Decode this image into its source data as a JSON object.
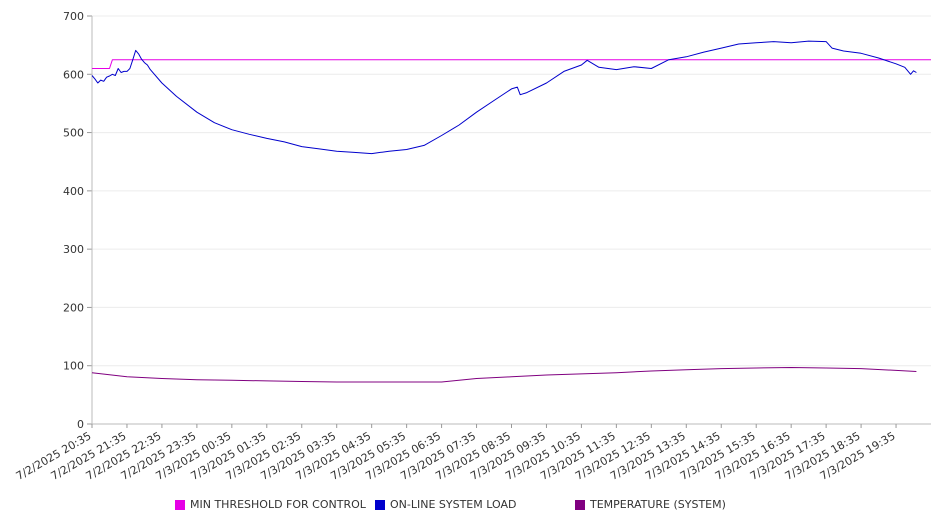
{
  "chart_data": {
    "type": "line",
    "title": "",
    "xlabel": "",
    "ylabel": "",
    "ylim": [
      0,
      700
    ],
    "yticks": [
      0,
      100,
      200,
      300,
      400,
      500,
      600,
      700
    ],
    "grid": true,
    "legend_position": "bottom",
    "x_tick_labels": [
      "7/2/2025 20:35",
      "7/2/2025 21:35",
      "7/2/2025 22:35",
      "7/2/2025 23:35",
      "7/3/2025 00:35",
      "7/3/2025 01:35",
      "7/3/2025 02:35",
      "7/3/2025 03:35",
      "7/3/2025 04:35",
      "7/3/2025 05:35",
      "7/3/2025 06:35",
      "7/3/2025 07:35",
      "7/3/2025 08:35",
      "7/3/2025 09:35",
      "7/3/2025 10:35",
      "7/3/2025 11:35",
      "7/3/2025 12:35",
      "7/3/2025 13:35",
      "7/3/2025 14:35",
      "7/3/2025 15:35",
      "7/3/2025 16:35",
      "7/3/2025 17:35",
      "7/3/2025 18:35",
      "7/3/2025 19:35"
    ],
    "x_time_range": [
      "7/2/2025 20:35",
      "7/3/2025 20:35"
    ],
    "series": [
      {
        "name": "MIN THRESHOLD FOR CONTROL",
        "color": "#e600e6",
        "points": [
          [
            "7/2/2025 20:35",
            610
          ],
          [
            "7/2/2025 21:05",
            610
          ],
          [
            "7/2/2025 21:10",
            625
          ],
          [
            "7/3/2025 20:35",
            625
          ]
        ]
      },
      {
        "name": "ON-LINE SYSTEM LOAD",
        "color": "#0000cc",
        "points": [
          [
            "7/2/2025 20:35",
            598
          ],
          [
            "7/2/2025 20:40",
            592
          ],
          [
            "7/2/2025 20:45",
            585
          ],
          [
            "7/2/2025 20:50",
            590
          ],
          [
            "7/2/2025 20:55",
            588
          ],
          [
            "7/2/2025 21:00",
            595
          ],
          [
            "7/2/2025 21:05",
            597
          ],
          [
            "7/2/2025 21:10",
            600
          ],
          [
            "7/2/2025 21:15",
            598
          ],
          [
            "7/2/2025 21:20",
            610
          ],
          [
            "7/2/2025 21:25",
            603
          ],
          [
            "7/2/2025 21:30",
            605
          ],
          [
            "7/2/2025 21:35",
            605
          ],
          [
            "7/2/2025 21:40",
            610
          ],
          [
            "7/2/2025 21:45",
            625
          ],
          [
            "7/2/2025 21:50",
            641
          ],
          [
            "7/2/2025 21:55",
            635
          ],
          [
            "7/2/2025 22:00",
            626
          ],
          [
            "7/2/2025 22:05",
            620
          ],
          [
            "7/2/2025 22:10",
            616
          ],
          [
            "7/2/2025 22:15",
            608
          ],
          [
            "7/2/2025 22:35",
            585
          ],
          [
            "7/2/2025 23:00",
            562
          ],
          [
            "7/2/2025 23:35",
            535
          ],
          [
            "7/3/2025 00:05",
            517
          ],
          [
            "7/3/2025 00:35",
            505
          ],
          [
            "7/3/2025 01:05",
            497
          ],
          [
            "7/3/2025 01:35",
            490
          ],
          [
            "7/3/2025 02:05",
            484
          ],
          [
            "7/3/2025 02:35",
            476
          ],
          [
            "7/3/2025 03:05",
            472
          ],
          [
            "7/3/2025 03:35",
            468
          ],
          [
            "7/3/2025 04:05",
            466
          ],
          [
            "7/3/2025 04:35",
            464
          ],
          [
            "7/3/2025 05:05",
            468
          ],
          [
            "7/3/2025 05:35",
            471
          ],
          [
            "7/3/2025 06:05",
            478
          ],
          [
            "7/3/2025 06:35",
            495
          ],
          [
            "7/3/2025 07:05",
            513
          ],
          [
            "7/3/2025 07:35",
            535
          ],
          [
            "7/3/2025 08:05",
            555
          ],
          [
            "7/3/2025 08:35",
            575
          ],
          [
            "7/3/2025 08:45",
            578
          ],
          [
            "7/3/2025 08:50",
            565
          ],
          [
            "7/3/2025 09:00",
            568
          ],
          [
            "7/3/2025 09:35",
            585
          ],
          [
            "7/3/2025 10:05",
            605
          ],
          [
            "7/3/2025 10:35",
            616
          ],
          [
            "7/3/2025 10:45",
            624
          ],
          [
            "7/3/2025 11:05",
            612
          ],
          [
            "7/3/2025 11:35",
            608
          ],
          [
            "7/3/2025 12:05",
            613
          ],
          [
            "7/3/2025 12:35",
            610
          ],
          [
            "7/3/2025 13:05",
            625
          ],
          [
            "7/3/2025 13:35",
            630
          ],
          [
            "7/3/2025 14:05",
            638
          ],
          [
            "7/3/2025 14:35",
            645
          ],
          [
            "7/3/2025 15:05",
            652
          ],
          [
            "7/3/2025 15:35",
            654
          ],
          [
            "7/3/2025 16:05",
            656
          ],
          [
            "7/3/2025 16:35",
            654
          ],
          [
            "7/3/2025 17:05",
            657
          ],
          [
            "7/3/2025 17:35",
            656
          ],
          [
            "7/3/2025 17:45",
            645
          ],
          [
            "7/3/2025 18:05",
            640
          ],
          [
            "7/3/2025 18:35",
            636
          ],
          [
            "7/3/2025 19:05",
            628
          ],
          [
            "7/3/2025 19:35",
            618
          ],
          [
            "7/3/2025 19:50",
            612
          ],
          [
            "7/3/2025 20:00",
            600
          ],
          [
            "7/3/2025 20:05",
            606
          ],
          [
            "7/3/2025 20:10",
            603
          ]
        ]
      },
      {
        "name": "TEMPERATURE (SYSTEM)",
        "color": "#800080",
        "points": [
          [
            "7/2/2025 20:35",
            88
          ],
          [
            "7/2/2025 21:35",
            81
          ],
          [
            "7/2/2025 22:35",
            78
          ],
          [
            "7/2/2025 23:35",
            76
          ],
          [
            "7/3/2025 00:35",
            75
          ],
          [
            "7/3/2025 01:35",
            74
          ],
          [
            "7/3/2025 02:35",
            73
          ],
          [
            "7/3/2025 03:35",
            72
          ],
          [
            "7/3/2025 04:35",
            72
          ],
          [
            "7/3/2025 05:35",
            72
          ],
          [
            "7/3/2025 06:35",
            72
          ],
          [
            "7/3/2025 07:35",
            78
          ],
          [
            "7/3/2025 08:35",
            81
          ],
          [
            "7/3/2025 09:35",
            84
          ],
          [
            "7/3/2025 10:35",
            86
          ],
          [
            "7/3/2025 11:35",
            88
          ],
          [
            "7/3/2025 12:35",
            91
          ],
          [
            "7/3/2025 13:35",
            93
          ],
          [
            "7/3/2025 14:35",
            95
          ],
          [
            "7/3/2025 15:35",
            96
          ],
          [
            "7/3/2025 16:35",
            97
          ],
          [
            "7/3/2025 17:35",
            96
          ],
          [
            "7/3/2025 18:35",
            95
          ],
          [
            "7/3/2025 19:35",
            92
          ],
          [
            "7/3/2025 20:10",
            90
          ]
        ]
      }
    ]
  }
}
